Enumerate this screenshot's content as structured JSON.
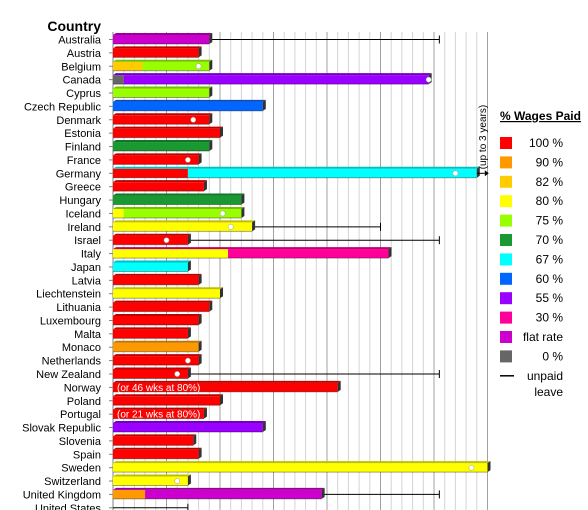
{
  "chart_data": {
    "type": "bar",
    "orientation": "horizontal",
    "stacked": true,
    "title": "",
    "xlabel": "",
    "ylabel": "Country",
    "x_unit": "weeks",
    "xlim": [
      0,
      70
    ],
    "grid": true,
    "legend_title": "% Wages Paid",
    "legend_position": "right",
    "legend": [
      {
        "name": "100 %",
        "color": "#ff0000"
      },
      {
        "name": "90 %",
        "color": "#ff9900"
      },
      {
        "name": "82 %",
        "color": "#ffcc00"
      },
      {
        "name": "80 %",
        "color": "#ffff00"
      },
      {
        "name": "75 %",
        "color": "#99ff00"
      },
      {
        "name": "70 %",
        "color": "#1a9933"
      },
      {
        "name": "67 %",
        "color": "#00ffff"
      },
      {
        "name": "60 %",
        "color": "#0066ff"
      },
      {
        "name": "55 %",
        "color": "#9900ff"
      },
      {
        "name": "30 %",
        "color": "#ff0099"
      },
      {
        "name": "flat rate",
        "color": "#cc00cc"
      },
      {
        "name": "0 %",
        "color": "#666666"
      },
      {
        "name": "unpaid leave",
        "symbol": "line"
      }
    ],
    "countries": [
      {
        "name": "Australia",
        "segments": [
          {
            "pct": "flat rate",
            "weeks": 18
          }
        ],
        "unpaid_to": 61
      },
      {
        "name": "Austria",
        "segments": [
          {
            "pct": "100 %",
            "weeks": 16
          }
        ]
      },
      {
        "name": "Belgium",
        "segments": [
          {
            "pct": "82 %",
            "weeks": 5.5
          },
          {
            "pct": "75 %",
            "weeks": 12.5
          }
        ],
        "dot": 16
      },
      {
        "name": "Canada",
        "segments": [
          {
            "pct": "0 %",
            "weeks": 2
          },
          {
            "pct": "55 %",
            "weeks": 57
          }
        ],
        "dot": 59
      },
      {
        "name": "Cyprus",
        "segments": [
          {
            "pct": "75 %",
            "weeks": 18
          }
        ]
      },
      {
        "name": "Czech Republic",
        "segments": [
          {
            "pct": "60 %",
            "weeks": 28
          }
        ]
      },
      {
        "name": "Denmark",
        "segments": [
          {
            "pct": "100 %",
            "weeks": 18
          }
        ],
        "dot": 15
      },
      {
        "name": "Estonia",
        "segments": [
          {
            "pct": "100 %",
            "weeks": 20
          }
        ]
      },
      {
        "name": "Finland",
        "segments": [
          {
            "pct": "70 %",
            "weeks": 18
          }
        ]
      },
      {
        "name": "France",
        "segments": [
          {
            "pct": "100 %",
            "weeks": 16
          }
        ],
        "dot": 14
      },
      {
        "name": "Germany",
        "segments": [
          {
            "pct": "100 %",
            "weeks": 14
          },
          {
            "pct": "67 %",
            "weeks": 54
          }
        ],
        "dot": 64,
        "annotation": "(up to 3 years)"
      },
      {
        "name": "Greece",
        "segments": [
          {
            "pct": "100 %",
            "weeks": 17
          }
        ]
      },
      {
        "name": "Hungary",
        "segments": [
          {
            "pct": "70 %",
            "weeks": 24
          }
        ]
      },
      {
        "name": "Iceland",
        "segments": [
          {
            "pct": "80 %",
            "weeks": 2
          },
          {
            "pct": "75 %",
            "weeks": 22
          }
        ],
        "dot": 20.5
      },
      {
        "name": "Ireland",
        "segments": [
          {
            "pct": "80 %",
            "weeks": 26
          }
        ],
        "dot": 22,
        "unpaid_to": 50
      },
      {
        "name": "Israel",
        "segments": [
          {
            "pct": "100 %",
            "weeks": 14
          }
        ],
        "dot": 10,
        "unpaid_to": 61
      },
      {
        "name": "Italy",
        "segments": [
          {
            "pct": "80 %",
            "weeks": 21.5
          },
          {
            "pct": "30 %",
            "weeks": 30
          }
        ]
      },
      {
        "name": "Japan",
        "segments": [
          {
            "pct": "67 %",
            "weeks": 14
          }
        ]
      },
      {
        "name": "Latvia",
        "segments": [
          {
            "pct": "100 %",
            "weeks": 16
          }
        ]
      },
      {
        "name": "Liechtenstein",
        "segments": [
          {
            "pct": "80 %",
            "weeks": 20
          }
        ]
      },
      {
        "name": "Lithuania",
        "segments": [
          {
            "pct": "100 %",
            "weeks": 18
          }
        ]
      },
      {
        "name": "Luxembourg",
        "segments": [
          {
            "pct": "100 %",
            "weeks": 16
          }
        ]
      },
      {
        "name": "Malta",
        "segments": [
          {
            "pct": "100 %",
            "weeks": 14
          }
        ]
      },
      {
        "name": "Monaco",
        "segments": [
          {
            "pct": "90 %",
            "weeks": 16
          }
        ]
      },
      {
        "name": "Netherlands",
        "segments": [
          {
            "pct": "100 %",
            "weeks": 16
          }
        ],
        "dot": 14
      },
      {
        "name": "New Zealand",
        "segments": [
          {
            "pct": "100 %",
            "weeks": 14
          }
        ],
        "dot": 12,
        "unpaid_to": 61
      },
      {
        "name": "Norway",
        "segments": [
          {
            "pct": "100 %",
            "weeks": 42
          }
        ],
        "label": "(or 46 wks at 80%)"
      },
      {
        "name": "Poland",
        "segments": [
          {
            "pct": "100 %",
            "weeks": 20
          }
        ]
      },
      {
        "name": "Portugal",
        "segments": [
          {
            "pct": "100 %",
            "weeks": 17
          }
        ],
        "label": "(or 21 wks at 80%)"
      },
      {
        "name": "Slovak Republic",
        "segments": [
          {
            "pct": "55 %",
            "weeks": 28
          }
        ]
      },
      {
        "name": "Slovenia",
        "segments": [
          {
            "pct": "100 %",
            "weeks": 15
          }
        ]
      },
      {
        "name": "Spain",
        "segments": [
          {
            "pct": "100 %",
            "weeks": 16
          }
        ]
      },
      {
        "name": "Sweden",
        "segments": [
          {
            "pct": "80 %",
            "weeks": 70
          }
        ],
        "dot": 67
      },
      {
        "name": "Switzerland",
        "segments": [
          {
            "pct": "80 %",
            "weeks": 14
          }
        ],
        "dot": 12
      },
      {
        "name": "United Kingdom",
        "segments": [
          {
            "pct": "90 %",
            "weeks": 6
          },
          {
            "pct": "flat rate",
            "weeks": 33
          }
        ],
        "unpaid_to": 61
      },
      {
        "name": "United States",
        "segments": [],
        "unpaid_to": 14
      }
    ]
  }
}
